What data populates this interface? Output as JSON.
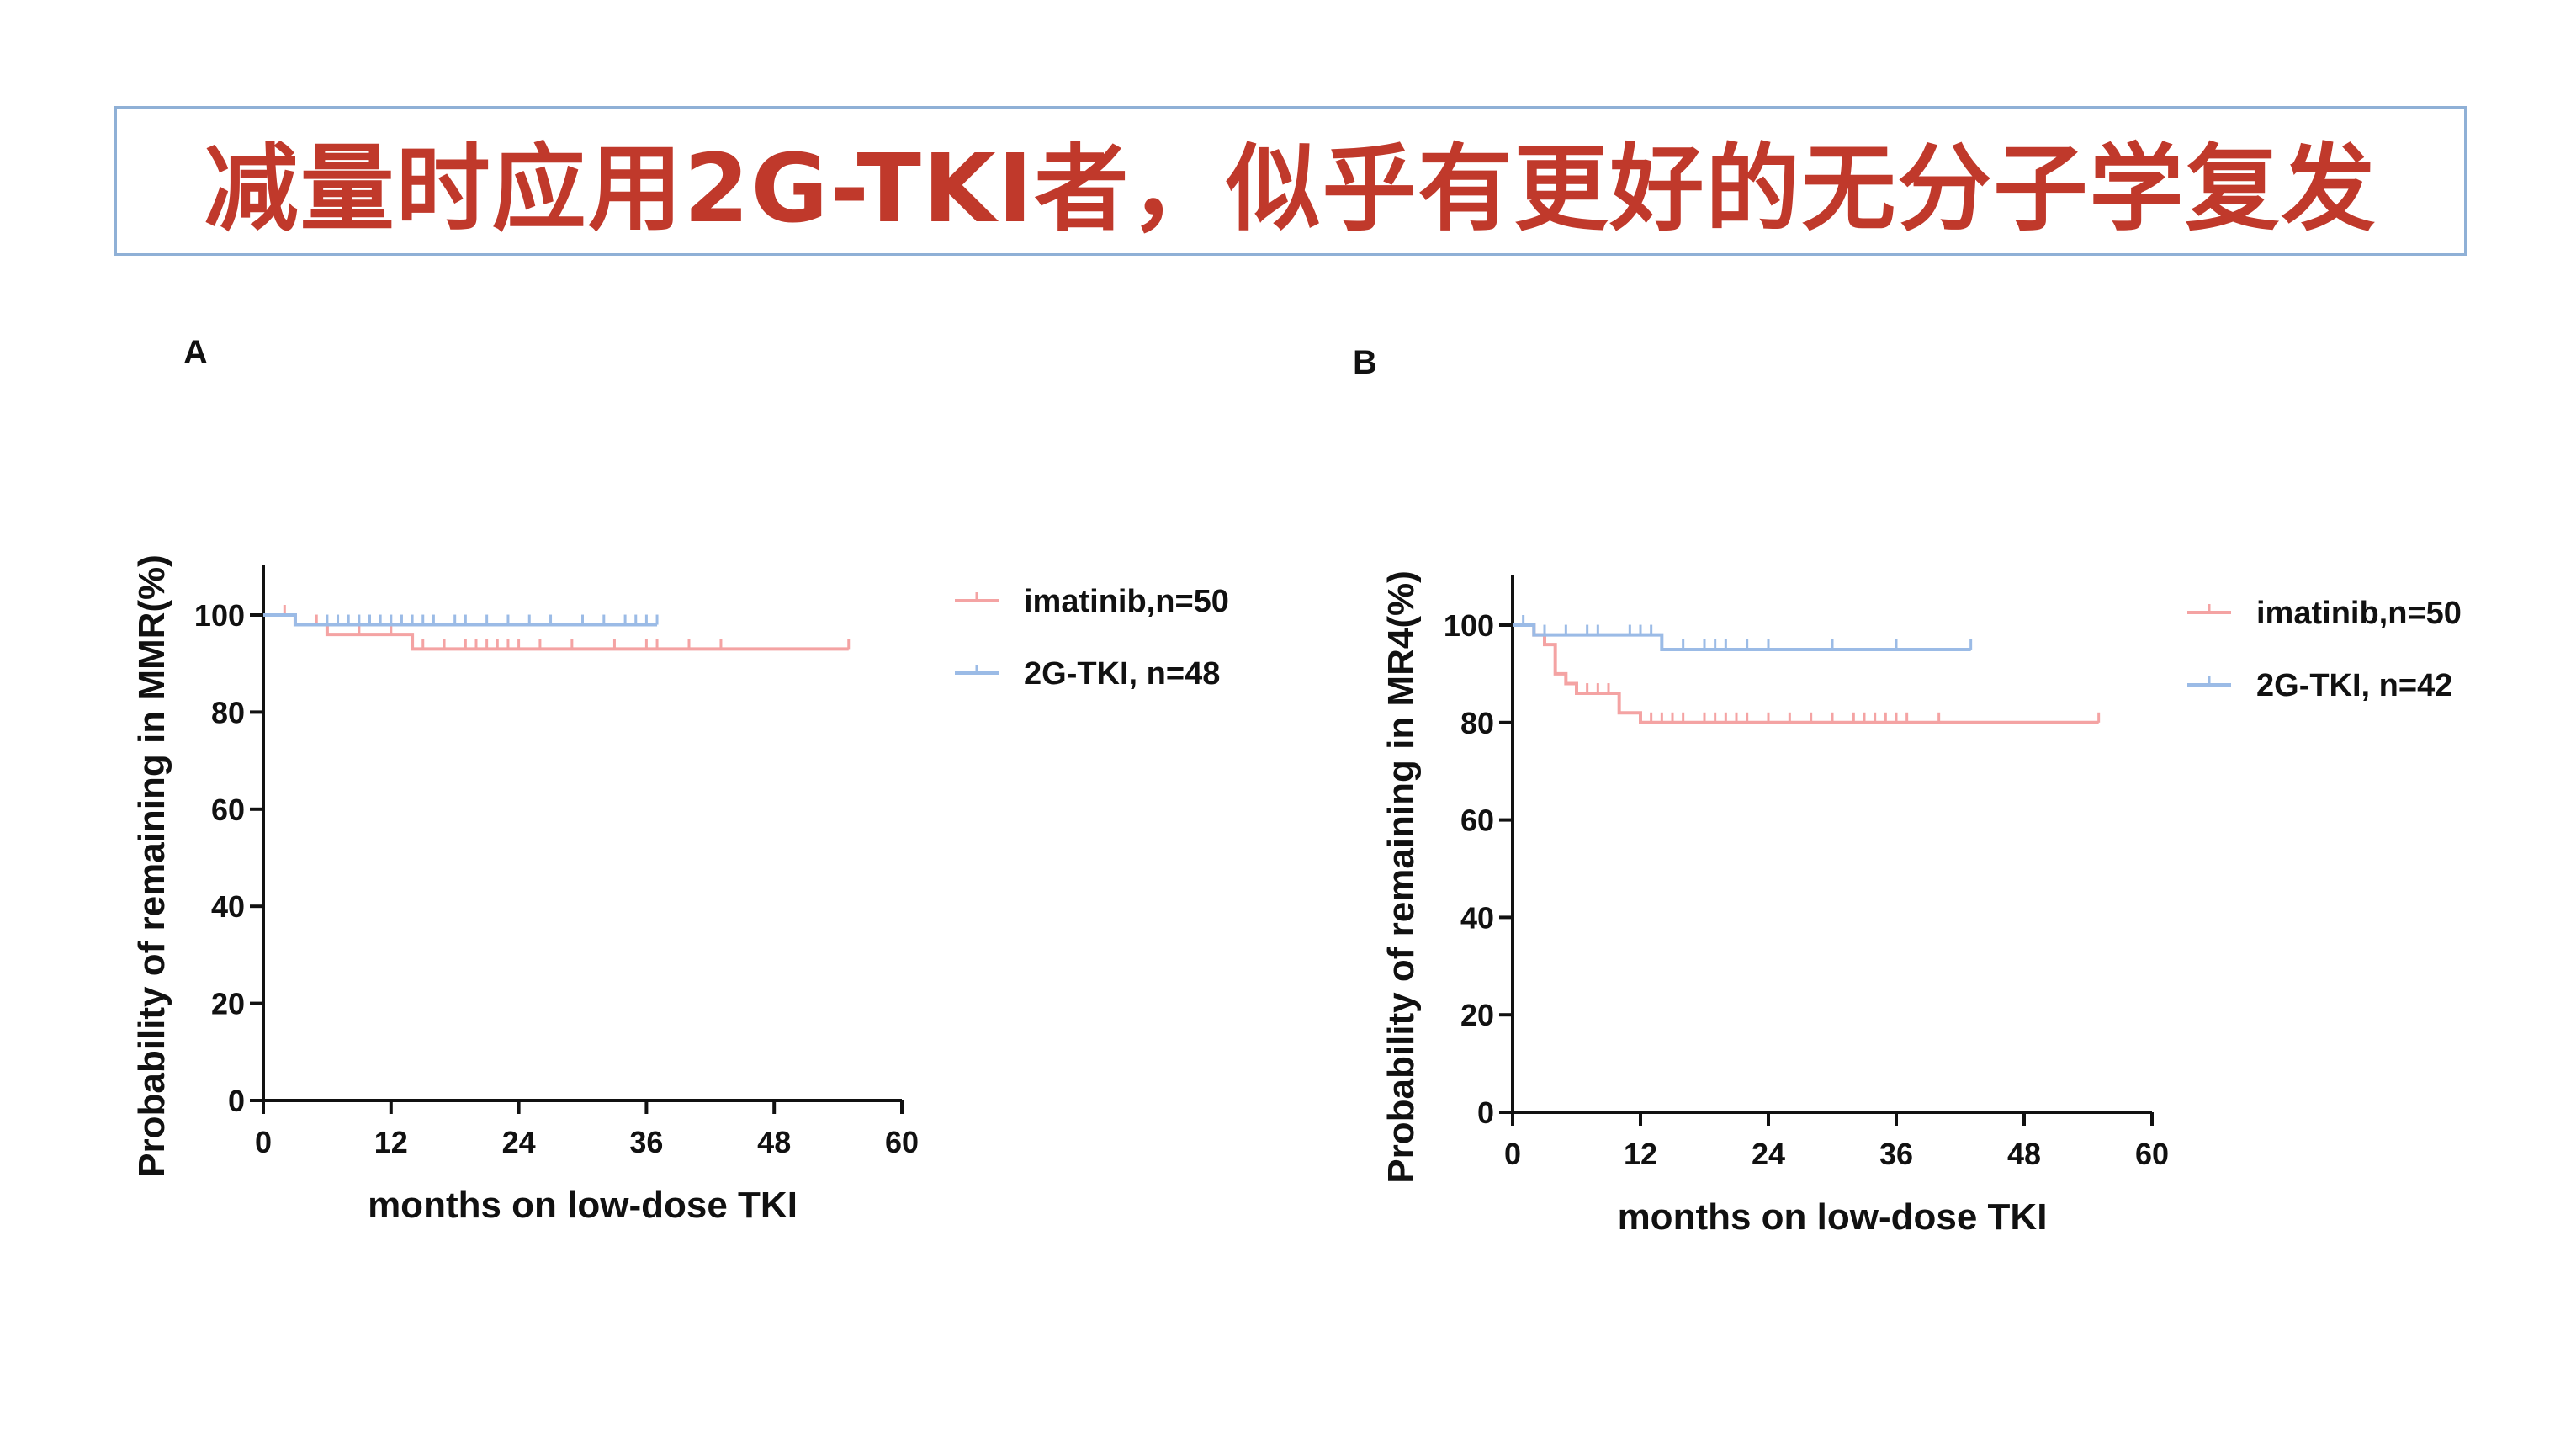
{
  "title": "减量时应用2G-TKI者，似乎有更好的无分子学复发",
  "colors": {
    "title": "#c0392b",
    "imatinib": "#f4a3a3",
    "tki2g": "#9bbbe6",
    "axis": "#111111"
  },
  "chart_data": [
    {
      "panel": "A",
      "type": "line",
      "step": true,
      "xlabel": "months on low-dose TKI",
      "ylabel": "Probability of remaining in MMR(%)",
      "xlim": [
        0,
        60
      ],
      "ylim": [
        0,
        100
      ],
      "xticks": [
        0,
        12,
        24,
        36,
        48,
        60
      ],
      "yticks": [
        0,
        20,
        40,
        60,
        80,
        100
      ],
      "legend_position": "right",
      "series": [
        {
          "name": "imatinib,n=50",
          "color_key": "imatinib",
          "points": [
            [
              0,
              100
            ],
            [
              3,
              98
            ],
            [
              6,
              96
            ],
            [
              14,
              93
            ],
            [
              55,
              93
            ]
          ],
          "censor": [
            2,
            5,
            9,
            12,
            15,
            17,
            19,
            20,
            21,
            22,
            23,
            24,
            26,
            29,
            33,
            36,
            37,
            40,
            43,
            55
          ]
        },
        {
          "name": "2G-TKI, n=48",
          "color_key": "tki2g",
          "points": [
            [
              0,
              100
            ],
            [
              3,
              98
            ],
            [
              37,
              98
            ]
          ],
          "censor": [
            6,
            7,
            8,
            9,
            10,
            11,
            12,
            13,
            14,
            15,
            16,
            18,
            19,
            21,
            23,
            25,
            27,
            30,
            32,
            34,
            35,
            36,
            37
          ]
        }
      ]
    },
    {
      "panel": "B",
      "type": "line",
      "step": true,
      "xlabel": "months on low-dose TKI",
      "ylabel": "Probability of remaining in MR4(%)",
      "xlim": [
        0,
        60
      ],
      "ylim": [
        0,
        100
      ],
      "xticks": [
        0,
        12,
        24,
        36,
        48,
        60
      ],
      "yticks": [
        0,
        20,
        40,
        60,
        80,
        100
      ],
      "legend_position": "right",
      "series": [
        {
          "name": "imatinib,n=50",
          "color_key": "imatinib",
          "points": [
            [
              0,
              100
            ],
            [
              2,
              98
            ],
            [
              3,
              96
            ],
            [
              4,
              90
            ],
            [
              5,
              88
            ],
            [
              6,
              86
            ],
            [
              10,
              82
            ],
            [
              12,
              80
            ],
            [
              55,
              80
            ]
          ],
          "censor": [
            7,
            8,
            9,
            13,
            14,
            15,
            16,
            18,
            19,
            20,
            21,
            22,
            24,
            26,
            28,
            30,
            32,
            33,
            34,
            35,
            36,
            37,
            40,
            55
          ]
        },
        {
          "name": "2G-TKI, n=42",
          "color_key": "tki2g",
          "points": [
            [
              0,
              100
            ],
            [
              2,
              98
            ],
            [
              14,
              95
            ],
            [
              43,
              95
            ]
          ],
          "censor": [
            1,
            3,
            5,
            7,
            8,
            11,
            12,
            13,
            16,
            18,
            19,
            20,
            22,
            24,
            30,
            36,
            43
          ]
        }
      ]
    }
  ]
}
